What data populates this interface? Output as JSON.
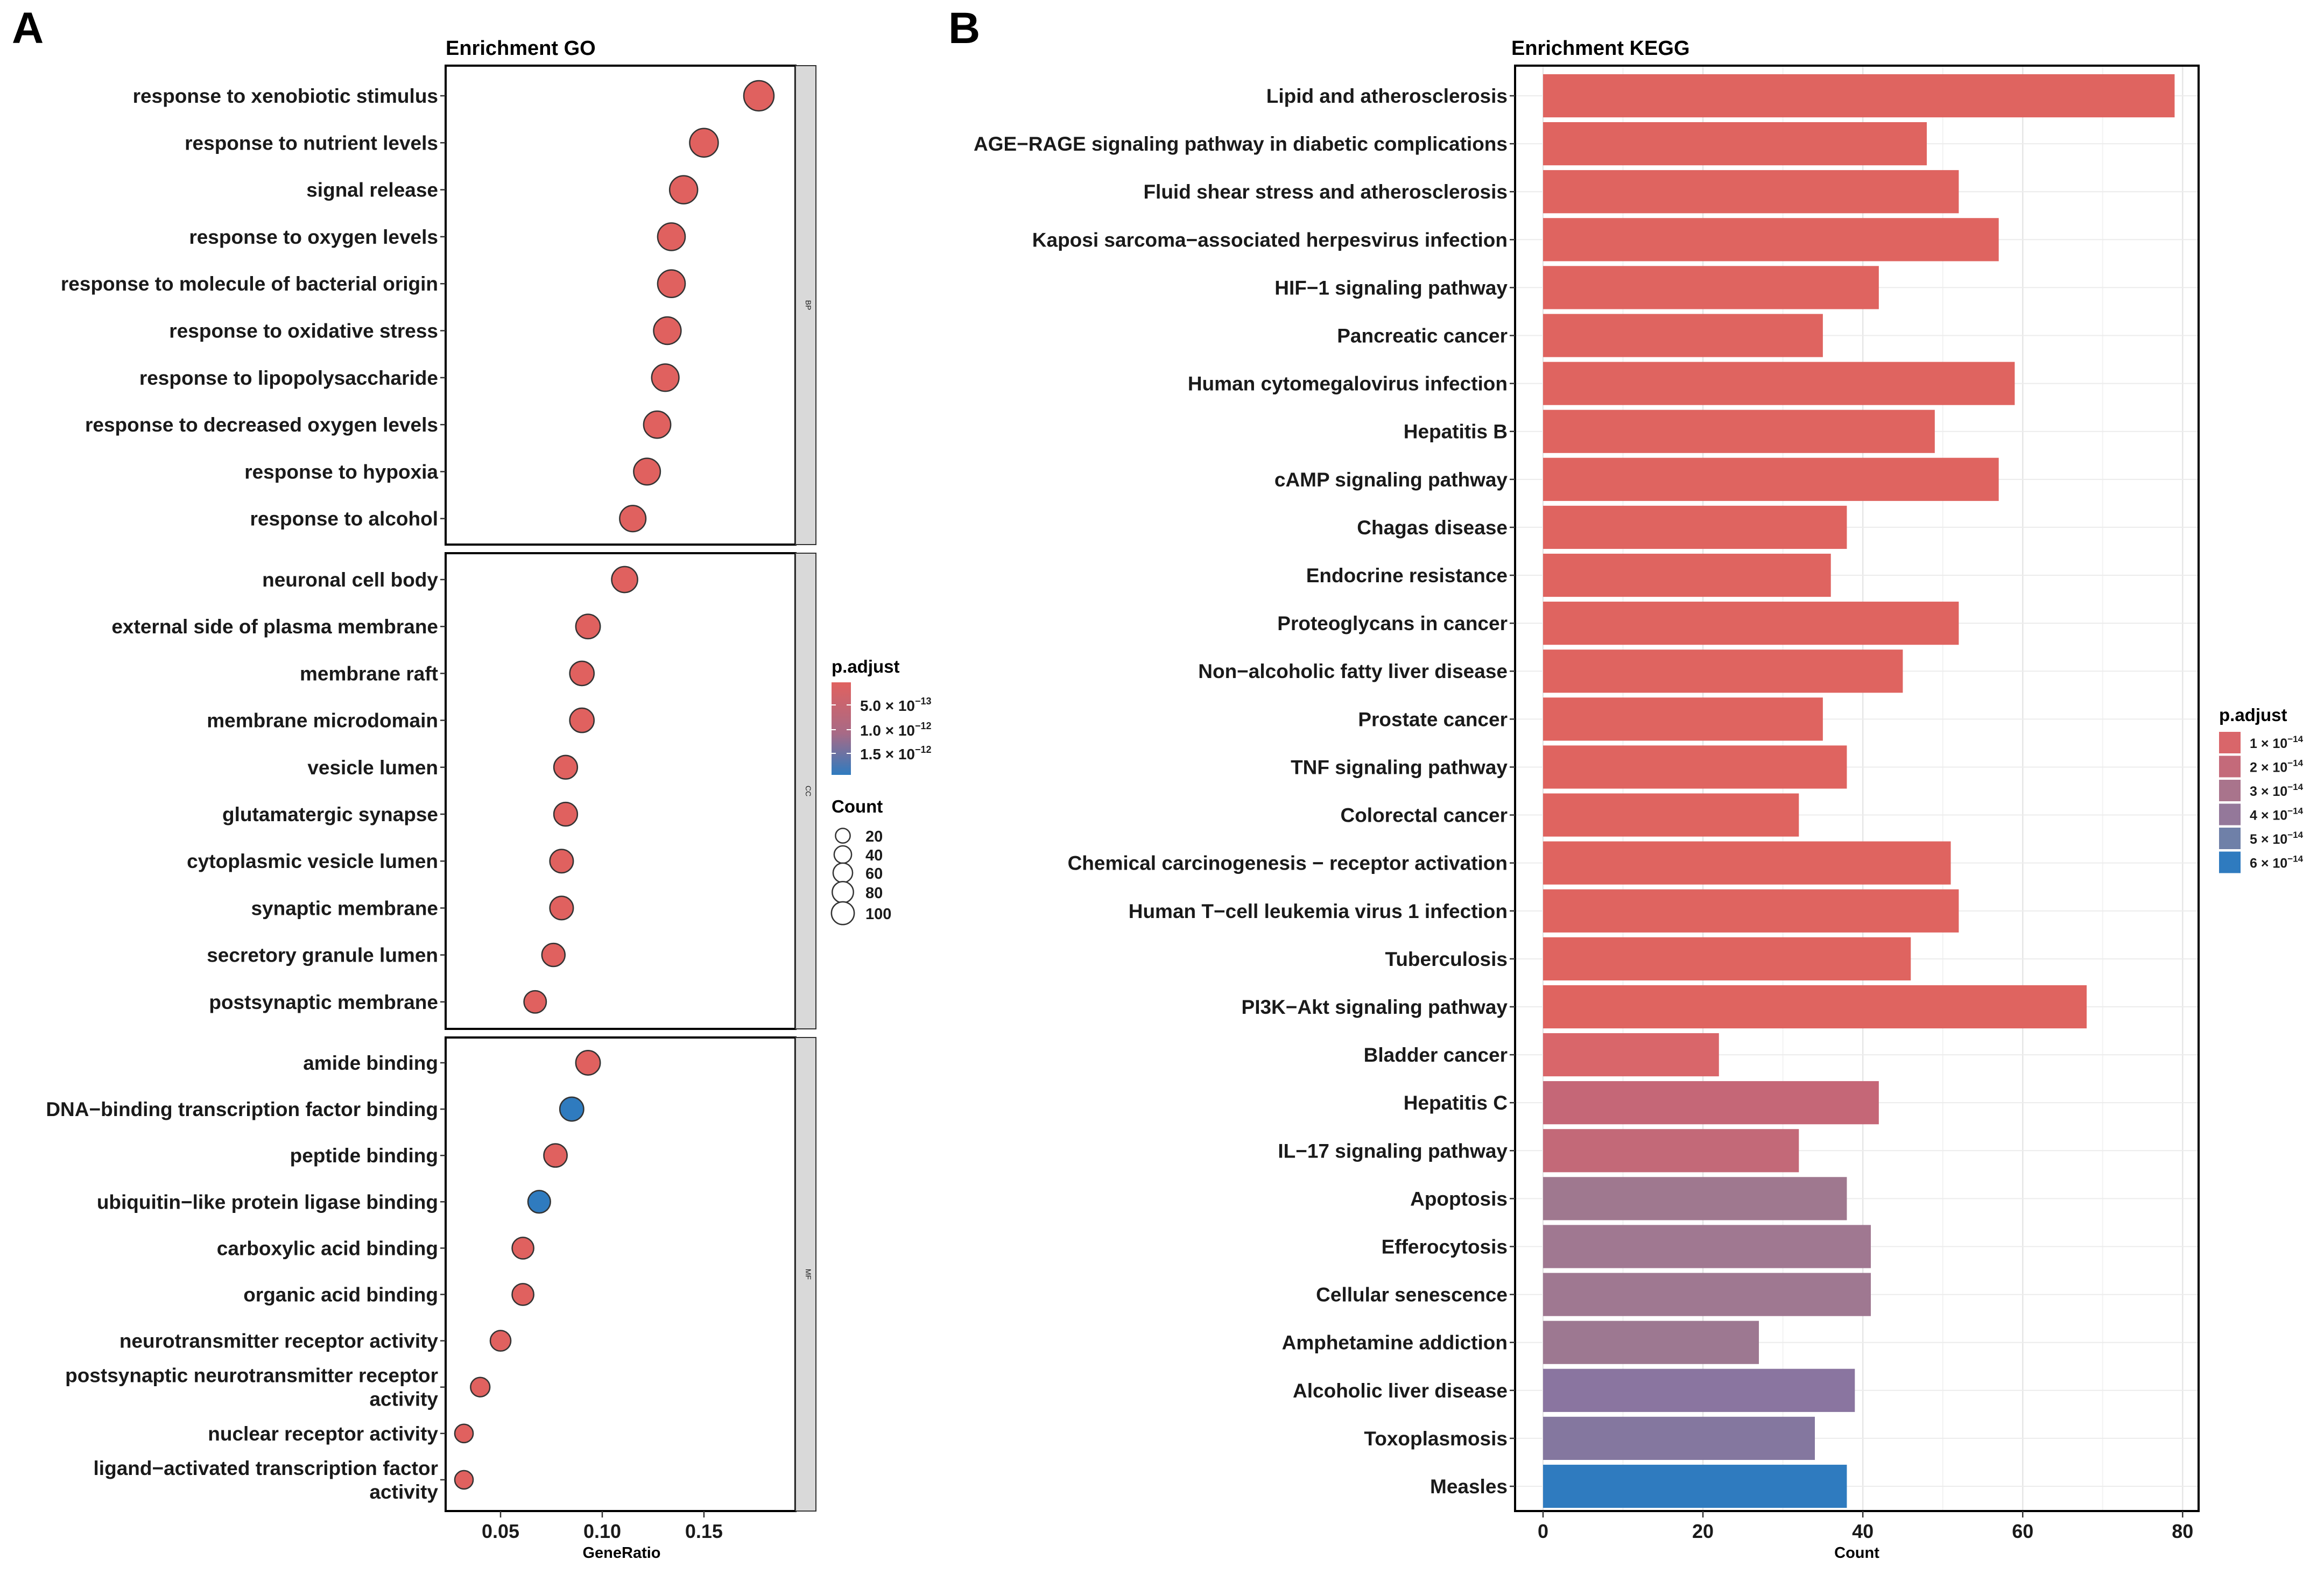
{
  "panel_a_label": "A",
  "panel_b_label": "B",
  "chart_data": [
    {
      "type": "scatter",
      "title": "Enrichment GO",
      "xlabel": "GeneRatio",
      "ylabel": "",
      "xlim": [
        0.023,
        0.195
      ],
      "xticks": [
        0.05,
        0.1,
        0.15
      ],
      "xtick_labels": [
        "0.05",
        "0.10",
        "0.15"
      ],
      "facets": [
        {
          "name": "BP",
          "terms": [
            {
              "label": "response to xenobiotic stimulus",
              "gene_ratio": 0.177,
              "count": 100,
              "class": "low"
            },
            {
              "label": "response to nutrient levels",
              "gene_ratio": 0.15,
              "count": 85,
              "class": "low"
            },
            {
              "label": "signal release",
              "gene_ratio": 0.14,
              "count": 80,
              "class": "low"
            },
            {
              "label": "response to oxygen levels",
              "gene_ratio": 0.134,
              "count": 76,
              "class": "low"
            },
            {
              "label": "response to molecule of bacterial origin",
              "gene_ratio": 0.134,
              "count": 76,
              "class": "low"
            },
            {
              "label": "response to oxidative stress",
              "gene_ratio": 0.132,
              "count": 75,
              "class": "low"
            },
            {
              "label": "response to lipopolysaccharide",
              "gene_ratio": 0.131,
              "count": 74,
              "class": "low"
            },
            {
              "label": "response to decreased oxygen levels",
              "gene_ratio": 0.127,
              "count": 72,
              "class": "low"
            },
            {
              "label": "response to hypoxia",
              "gene_ratio": 0.122,
              "count": 69,
              "class": "low"
            },
            {
              "label": "response to alcohol",
              "gene_ratio": 0.115,
              "count": 65,
              "class": "low"
            }
          ]
        },
        {
          "name": "CC",
          "terms": [
            {
              "label": "neuronal cell body",
              "gene_ratio": 0.111,
              "count": 63,
              "class": "low"
            },
            {
              "label": "external side of plasma membrane",
              "gene_ratio": 0.093,
              "count": 52,
              "class": "low"
            },
            {
              "label": "membrane raft",
              "gene_ratio": 0.09,
              "count": 51,
              "class": "low"
            },
            {
              "label": "membrane microdomain",
              "gene_ratio": 0.09,
              "count": 51,
              "class": "low"
            },
            {
              "label": "vesicle lumen",
              "gene_ratio": 0.082,
              "count": 46,
              "class": "low"
            },
            {
              "label": "glutamatergic synapse",
              "gene_ratio": 0.082,
              "count": 46,
              "class": "low"
            },
            {
              "label": "cytoplasmic vesicle lumen",
              "gene_ratio": 0.08,
              "count": 45,
              "class": "low"
            },
            {
              "label": "synaptic membrane",
              "gene_ratio": 0.08,
              "count": 45,
              "class": "low"
            },
            {
              "label": "secretory granule lumen",
              "gene_ratio": 0.076,
              "count": 43,
              "class": "low"
            },
            {
              "label": "postsynaptic membrane",
              "gene_ratio": 0.067,
              "count": 38,
              "class": "low"
            }
          ]
        },
        {
          "name": "MF",
          "terms": [
            {
              "label": "amide binding",
              "gene_ratio": 0.093,
              "count": 52,
              "class": "low"
            },
            {
              "label": "DNA−binding transcription factor binding",
              "gene_ratio": 0.085,
              "count": 48,
              "class": "high"
            },
            {
              "label": "peptide binding",
              "gene_ratio": 0.077,
              "count": 44,
              "class": "low"
            },
            {
              "label": "ubiquitin−like protein ligase binding",
              "gene_ratio": 0.069,
              "count": 39,
              "class": "high"
            },
            {
              "label": "carboxylic acid binding",
              "gene_ratio": 0.061,
              "count": 34,
              "class": "low"
            },
            {
              "label": "organic acid binding",
              "gene_ratio": 0.061,
              "count": 34,
              "class": "low"
            },
            {
              "label": "neurotransmitter receptor activity",
              "gene_ratio": 0.05,
              "count": 28,
              "class": "low"
            },
            {
              "label": [
                "postsynaptic neurotransmitter receptor",
                "activity"
              ],
              "gene_ratio": 0.04,
              "count": 22,
              "class": "low"
            },
            {
              "label": "nuclear receptor activity",
              "gene_ratio": 0.032,
              "count": 18,
              "class": "low"
            },
            {
              "label": [
                "ligand−activated transcription factor",
                "activity"
              ],
              "gene_ratio": 0.032,
              "count": 18,
              "class": "low"
            }
          ]
        }
      ],
      "legend": {
        "color_title": "p.adjust",
        "color_labels": [
          "5.0 × 10",
          "1.0 × 10",
          "1.5 × 10"
        ],
        "color_exponents": [
          "−13",
          "−12",
          "−12"
        ],
        "size_title": "Count",
        "size_values": [
          20,
          40,
          60,
          80,
          100
        ]
      },
      "colors": {
        "low": "#e0615f",
        "high": "#2f7bbf"
      }
    },
    {
      "type": "bar",
      "orientation": "horizontal",
      "title": "Enrichment KEGG",
      "xlabel": "Count",
      "ylabel": "",
      "xlim": [
        -3.5,
        82
      ],
      "xticks": [
        0,
        20,
        40,
        60,
        80
      ],
      "categories": [
        "Lipid and atherosclerosis",
        "AGE−RAGE signaling pathway in diabetic complications",
        "Fluid shear stress and atherosclerosis",
        "Kaposi sarcoma−associated herpesvirus infection",
        "HIF−1 signaling pathway",
        "Pancreatic cancer",
        "Human cytomegalovirus infection",
        "Hepatitis B",
        "cAMP signaling pathway",
        "Chagas disease",
        "Endocrine resistance",
        "Proteoglycans in cancer",
        "Non−alcoholic fatty liver disease",
        "Prostate cancer",
        "TNF signaling pathway",
        "Colorectal cancer",
        "Chemical carcinogenesis − receptor activation",
        "Human T−cell leukemia virus 1 infection",
        "Tuberculosis",
        "PI3K−Akt signaling pathway",
        "Bladder cancer",
        "Hepatitis C",
        "IL−17 signaling pathway",
        "Apoptosis",
        "Efferocytosis",
        "Cellular senescence",
        "Amphetamine addiction",
        "Alcoholic liver disease",
        "Toxoplasmosis",
        "Measles"
      ],
      "values": [
        79,
        48,
        52,
        57,
        42,
        35,
        59,
        49,
        57,
        38,
        36,
        52,
        45,
        35,
        38,
        32,
        51,
        52,
        46,
        68,
        22,
        42,
        32,
        38,
        41,
        41,
        27,
        39,
        34,
        38
      ],
      "bar_colors": [
        "#df6460",
        "#df6460",
        "#df6460",
        "#df6460",
        "#df6460",
        "#df6460",
        "#df6460",
        "#df6460",
        "#df6460",
        "#df6460",
        "#df6460",
        "#df6460",
        "#df6460",
        "#df6460",
        "#df6460",
        "#df6460",
        "#df6460",
        "#df6460",
        "#df6460",
        "#df6460",
        "#d9666a",
        "#c56777",
        "#c36978",
        "#9f788f",
        "#a07891",
        "#9f7891",
        "#9d7891",
        "#8a75a0",
        "#84779f",
        "#2f7bbf"
      ],
      "legend": {
        "title": "p.adjust",
        "labels": [
          "1 × 10",
          "2 × 10",
          "3 × 10",
          "4 × 10",
          "5 × 10",
          "6 × 10"
        ],
        "exponent": "−14",
        "colors": [
          "#d9666a",
          "#c46a7a",
          "#a9748c",
          "#94789a",
          "#6f80a8",
          "#2f7bbf"
        ]
      }
    }
  ]
}
